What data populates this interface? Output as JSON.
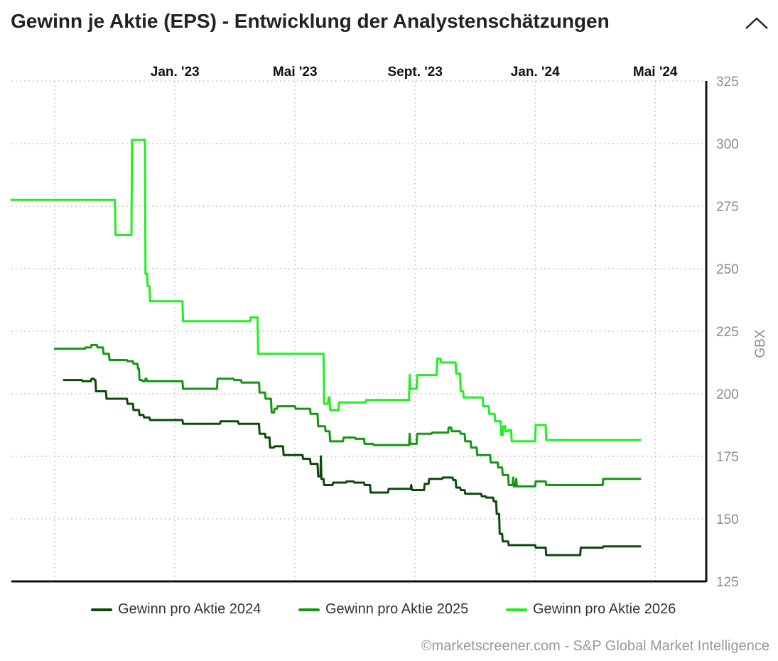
{
  "header": {
    "title": "Gewinn je Aktie (EPS) - Entwicklung der Analystenschätzungen",
    "collapse_icon": "chevron-up-icon"
  },
  "chart_data": {
    "type": "line",
    "title": "Gewinn je Aktie (EPS) - Entwicklung der Analystenschätzungen",
    "xlabel": "",
    "ylabel": "GBX",
    "x_ticks": [
      {
        "label": "Jan. '23",
        "t": 4
      },
      {
        "label": "Mai '23",
        "t": 8
      },
      {
        "label": "Sept. '23",
        "t": 12
      },
      {
        "label": "Jan. '24",
        "t": 16
      },
      {
        "label": "Mai '24",
        "t": 20
      }
    ],
    "xlim": [
      -1.45,
      21.7
    ],
    "ylim": [
      125,
      325
    ],
    "y_ticks": [
      125,
      150,
      175,
      200,
      225,
      250,
      275,
      300,
      325
    ],
    "grid": true,
    "legend_position": "bottom",
    "series": [
      {
        "name": "Gewinn pro Aktie 2024",
        "color": "#0b4a0b",
        "points": [
          [
            0.3,
            205.5
          ],
          [
            0.9,
            205.5
          ],
          [
            0.92,
            205
          ],
          [
            1.2,
            205
          ],
          [
            1.22,
            206
          ],
          [
            1.3,
            206
          ],
          [
            1.32,
            205.5
          ],
          [
            1.35,
            205.5
          ],
          [
            1.37,
            201
          ],
          [
            1.7,
            201
          ],
          [
            1.72,
            198
          ],
          [
            2.4,
            198
          ],
          [
            2.42,
            196
          ],
          [
            2.6,
            196
          ],
          [
            2.62,
            193.5
          ],
          [
            2.8,
            193.5
          ],
          [
            2.82,
            191.5
          ],
          [
            2.95,
            191.5
          ],
          [
            2.97,
            190.5
          ],
          [
            3.15,
            190.5
          ],
          [
            3.17,
            189.5
          ],
          [
            4.25,
            189.5
          ],
          [
            4.27,
            188
          ],
          [
            5.5,
            188
          ],
          [
            5.52,
            189
          ],
          [
            6.1,
            189
          ],
          [
            6.12,
            188
          ],
          [
            6.8,
            188
          ],
          [
            6.82,
            184
          ],
          [
            7.0,
            184
          ],
          [
            7.02,
            182.5
          ],
          [
            7.15,
            182.5
          ],
          [
            7.17,
            178.5
          ],
          [
            7.3,
            178.5
          ],
          [
            7.32,
            179
          ],
          [
            7.6,
            179
          ],
          [
            7.62,
            175.5
          ],
          [
            8.25,
            175.5
          ],
          [
            8.27,
            174
          ],
          [
            8.5,
            174
          ],
          [
            8.52,
            172
          ],
          [
            8.75,
            172
          ],
          [
            8.77,
            167
          ],
          [
            8.85,
            167
          ],
          [
            8.86,
            175
          ],
          [
            8.88,
            166
          ],
          [
            8.95,
            166
          ],
          [
            8.97,
            163.5
          ],
          [
            9.25,
            163.5
          ],
          [
            9.27,
            164.5
          ],
          [
            9.7,
            164.5
          ],
          [
            9.72,
            165
          ],
          [
            9.95,
            165
          ],
          [
            9.97,
            164.5
          ],
          [
            10.3,
            164.5
          ],
          [
            10.32,
            163.5
          ],
          [
            10.5,
            163.5
          ],
          [
            10.52,
            160.5
          ],
          [
            11.1,
            160.5
          ],
          [
            11.12,
            162
          ],
          [
            11.85,
            162
          ],
          [
            11.87,
            163.5
          ],
          [
            11.9,
            161.5
          ],
          [
            12.3,
            161.5
          ],
          [
            12.32,
            164
          ],
          [
            12.45,
            164
          ],
          [
            12.47,
            166
          ],
          [
            12.9,
            166
          ],
          [
            12.92,
            166.5
          ],
          [
            13.25,
            166.5
          ],
          [
            13.27,
            165.5
          ],
          [
            13.35,
            165.5
          ],
          [
            13.37,
            162.5
          ],
          [
            13.5,
            162.5
          ],
          [
            13.52,
            161.5
          ],
          [
            13.65,
            161.5
          ],
          [
            13.67,
            160
          ],
          [
            14.2,
            160
          ],
          [
            14.22,
            159
          ],
          [
            14.35,
            159
          ],
          [
            14.37,
            158.5
          ],
          [
            14.6,
            158.5
          ],
          [
            14.62,
            157
          ],
          [
            14.7,
            157
          ],
          [
            14.72,
            152
          ],
          [
            14.8,
            152
          ],
          [
            14.82,
            144
          ],
          [
            14.9,
            144
          ],
          [
            14.92,
            141
          ],
          [
            15.1,
            141
          ],
          [
            15.12,
            139.5
          ],
          [
            16.0,
            139.5
          ],
          [
            16.02,
            138.5
          ],
          [
            16.35,
            138.5
          ],
          [
            16.37,
            135.5
          ],
          [
            17.5,
            135.5
          ],
          [
            17.52,
            138.5
          ],
          [
            18.25,
            138.5
          ],
          [
            18.27,
            139
          ],
          [
            19.5,
            139
          ]
        ]
      },
      {
        "name": "Gewinn pro Aktie 2025",
        "color": "#139713",
        "points": [
          [
            0.0,
            218
          ],
          [
            1.0,
            218
          ],
          [
            1.02,
            218.5
          ],
          [
            1.2,
            218.5
          ],
          [
            1.22,
            219.5
          ],
          [
            1.4,
            219.5
          ],
          [
            1.42,
            218.5
          ],
          [
            1.6,
            218.5
          ],
          [
            1.62,
            216
          ],
          [
            1.8,
            216
          ],
          [
            1.82,
            213.5
          ],
          [
            2.4,
            213.5
          ],
          [
            2.42,
            213
          ],
          [
            2.6,
            213
          ],
          [
            2.62,
            212
          ],
          [
            2.75,
            212
          ],
          [
            2.77,
            210
          ],
          [
            2.8,
            210
          ],
          [
            2.82,
            205.5
          ],
          [
            2.9,
            205.5
          ],
          [
            2.92,
            205
          ],
          [
            3.0,
            205
          ],
          [
            3.02,
            206
          ],
          [
            3.05,
            206
          ],
          [
            3.07,
            205
          ],
          [
            4.25,
            205
          ],
          [
            4.27,
            202
          ],
          [
            5.4,
            202
          ],
          [
            5.42,
            206
          ],
          [
            5.95,
            206
          ],
          [
            5.97,
            205.5
          ],
          [
            6.2,
            205.5
          ],
          [
            6.22,
            204.5
          ],
          [
            6.8,
            204.5
          ],
          [
            6.82,
            200.5
          ],
          [
            7.0,
            200.5
          ],
          [
            7.02,
            198
          ],
          [
            7.2,
            198
          ],
          [
            7.22,
            192.5
          ],
          [
            7.3,
            192.5
          ],
          [
            7.32,
            194
          ],
          [
            7.4,
            194
          ],
          [
            7.42,
            195
          ],
          [
            8.0,
            195
          ],
          [
            8.02,
            194
          ],
          [
            8.5,
            194
          ],
          [
            8.52,
            192
          ],
          [
            8.75,
            192
          ],
          [
            8.77,
            187
          ],
          [
            9.0,
            187
          ],
          [
            9.02,
            185
          ],
          [
            9.15,
            185
          ],
          [
            9.17,
            181
          ],
          [
            9.6,
            181
          ],
          [
            9.62,
            182.5
          ],
          [
            10.0,
            182.5
          ],
          [
            10.02,
            182
          ],
          [
            10.3,
            182
          ],
          [
            10.32,
            180
          ],
          [
            10.6,
            180
          ],
          [
            10.62,
            179.5
          ],
          [
            11.8,
            179.5
          ],
          [
            11.82,
            184
          ],
          [
            11.84,
            180
          ],
          [
            12.05,
            180
          ],
          [
            12.07,
            184
          ],
          [
            12.55,
            184
          ],
          [
            12.57,
            184.5
          ],
          [
            13.1,
            184.5
          ],
          [
            13.12,
            186.5
          ],
          [
            13.2,
            186.5
          ],
          [
            13.22,
            185
          ],
          [
            13.5,
            185
          ],
          [
            13.52,
            184
          ],
          [
            13.65,
            184
          ],
          [
            13.67,
            181
          ],
          [
            13.85,
            181
          ],
          [
            13.87,
            178.5
          ],
          [
            14.05,
            178.5
          ],
          [
            14.07,
            175.5
          ],
          [
            14.5,
            175.5
          ],
          [
            14.52,
            172.5
          ],
          [
            14.75,
            172.5
          ],
          [
            14.77,
            170.5
          ],
          [
            14.9,
            170.5
          ],
          [
            14.92,
            167.5
          ],
          [
            15.1,
            167.5
          ],
          [
            15.12,
            163.5
          ],
          [
            15.25,
            163.5
          ],
          [
            15.27,
            166.5
          ],
          [
            15.29,
            163
          ],
          [
            15.35,
            163
          ],
          [
            15.37,
            166
          ],
          [
            15.39,
            163
          ],
          [
            16.0,
            163
          ],
          [
            16.02,
            165
          ],
          [
            16.35,
            165
          ],
          [
            16.37,
            163.5
          ],
          [
            18.25,
            163.5
          ],
          [
            18.27,
            166
          ],
          [
            19.5,
            166
          ]
        ]
      },
      {
        "name": "Gewinn pro Aktie 2026",
        "color": "#22ee22",
        "points": [
          [
            -1.45,
            277.5
          ],
          [
            2.0,
            277.5
          ],
          [
            2.02,
            263.5
          ],
          [
            2.55,
            263.5
          ],
          [
            2.57,
            301.5
          ],
          [
            3.0,
            301.5
          ],
          [
            3.02,
            248
          ],
          [
            3.07,
            248
          ],
          [
            3.09,
            243
          ],
          [
            3.15,
            243
          ],
          [
            3.17,
            237
          ],
          [
            4.25,
            237
          ],
          [
            4.27,
            229
          ],
          [
            6.5,
            229
          ],
          [
            6.52,
            230.5
          ],
          [
            6.75,
            230.5
          ],
          [
            6.77,
            216
          ],
          [
            8.95,
            216
          ],
          [
            8.97,
            196
          ],
          [
            9.1,
            196
          ],
          [
            9.12,
            198.5
          ],
          [
            9.15,
            198.5
          ],
          [
            9.17,
            193.5
          ],
          [
            9.45,
            193.5
          ],
          [
            9.47,
            196.5
          ],
          [
            10.35,
            196.5
          ],
          [
            10.37,
            197.5
          ],
          [
            11.8,
            197.5
          ],
          [
            11.82,
            207.5
          ],
          [
            11.84,
            202
          ],
          [
            12.05,
            202
          ],
          [
            12.07,
            207.5
          ],
          [
            12.72,
            207.5
          ],
          [
            12.74,
            214
          ],
          [
            12.85,
            214
          ],
          [
            12.87,
            212.5
          ],
          [
            13.35,
            212.5
          ],
          [
            13.37,
            208
          ],
          [
            13.5,
            208
          ],
          [
            13.52,
            201
          ],
          [
            13.6,
            201
          ],
          [
            13.62,
            198.5
          ],
          [
            14.25,
            198.5
          ],
          [
            14.27,
            195
          ],
          [
            14.45,
            195
          ],
          [
            14.47,
            192
          ],
          [
            14.65,
            192
          ],
          [
            14.67,
            189
          ],
          [
            14.85,
            189
          ],
          [
            14.87,
            183.5
          ],
          [
            14.92,
            183.5
          ],
          [
            14.94,
            187
          ],
          [
            15.0,
            187
          ],
          [
            15.02,
            185
          ],
          [
            15.1,
            185
          ],
          [
            15.12,
            185.5
          ],
          [
            15.2,
            185.5
          ],
          [
            15.22,
            181
          ],
          [
            16.0,
            181
          ],
          [
            16.02,
            187.5
          ],
          [
            16.35,
            187.5
          ],
          [
            16.37,
            181.5
          ],
          [
            19.5,
            181.5
          ]
        ]
      }
    ]
  },
  "credit": "©marketscreener.com - S&P Global Market Intelligence"
}
